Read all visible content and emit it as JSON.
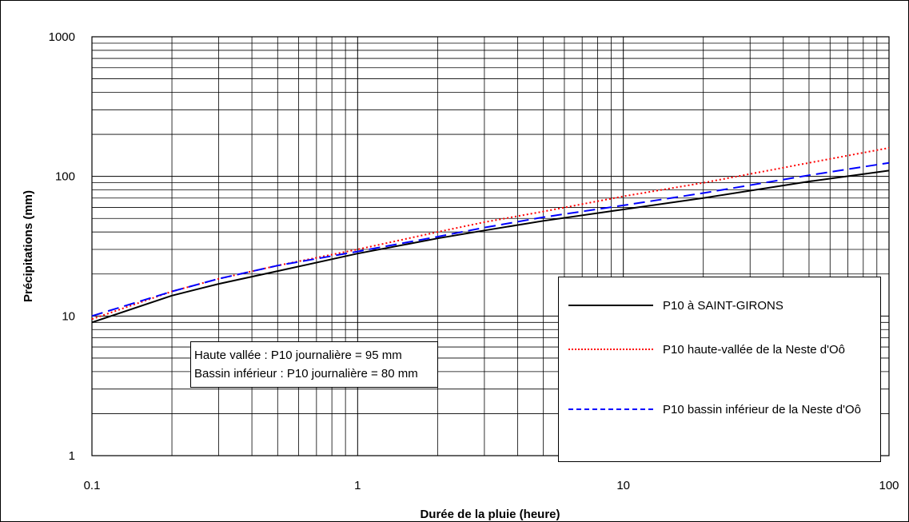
{
  "chart_data": {
    "type": "line",
    "xlabel": "Durée de la pluie (heure)",
    "ylabel": "Précipitations (mm)",
    "x_scale": "log",
    "y_scale": "log",
    "xlim": [
      0.1,
      100
    ],
    "ylim": [
      1,
      1000
    ],
    "x_ticks": [
      "0.1",
      "1",
      "10",
      "100"
    ],
    "y_ticks": [
      "1",
      "10",
      "100",
      "1000"
    ],
    "grid": true,
    "legend_position": "bottom-right",
    "series": [
      {
        "name": "P10 à SAINT-GIRONS",
        "color": "#000000",
        "style": "solid",
        "x": [
          0.1,
          0.2,
          0.3,
          0.5,
          1,
          2,
          3,
          5,
          10,
          20,
          50,
          100
        ],
        "y": [
          9,
          14,
          17,
          21,
          28,
          36,
          41,
          48,
          58,
          70,
          92,
          110
        ]
      },
      {
        "name": "P10 haute-vallée de la Neste d'Oô",
        "color": "#ff0000",
        "style": "dotted",
        "x": [
          0.1,
          0.2,
          0.3,
          0.5,
          1,
          2,
          3,
          5,
          10,
          20,
          50,
          100
        ],
        "y": [
          9.5,
          15,
          18.5,
          23,
          30,
          40,
          47,
          56,
          72,
          90,
          125,
          160
        ]
      },
      {
        "name": "P10 bassin inférieur de la Neste d'Oô",
        "color": "#0000ff",
        "style": "dashed",
        "x": [
          0.1,
          0.2,
          0.3,
          0.5,
          1,
          2,
          3,
          5,
          10,
          20,
          50,
          100
        ],
        "y": [
          10,
          15,
          18.5,
          23,
          29,
          37,
          43,
          51,
          62,
          76,
          102,
          125
        ]
      }
    ],
    "annotations": [
      "Haute vallée : P10 journalière = 95 mm",
      "Bassin inférieur : P10 journalière = 80 mm"
    ]
  }
}
